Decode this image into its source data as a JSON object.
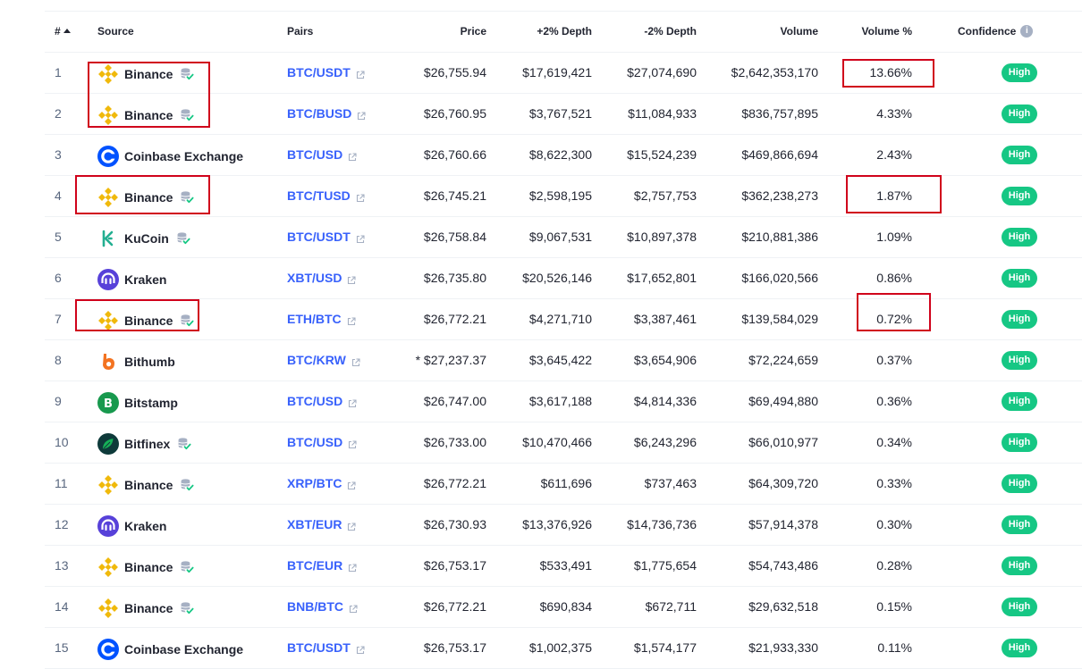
{
  "header": {
    "rank": "#",
    "source": "Source",
    "pairs": "Pairs",
    "price": "Price",
    "plus_depth": "+2% Depth",
    "minus_depth": "-2% Depth",
    "volume": "Volume",
    "volume_pct": "Volume %",
    "confidence": "Confidence",
    "confidence_info_icon": "info-icon",
    "sort_icon": "caret-up-icon"
  },
  "colors": {
    "link": "#3861fb",
    "badge_high": "#16c784",
    "highlight_box": "#d0021b"
  },
  "rows": [
    {
      "rank": "1",
      "source": "Binance",
      "logo": "binance-logo",
      "verified": true,
      "pair": "BTC/USDT",
      "price": "$26,755.94",
      "plus_depth": "$17,619,421",
      "minus_depth": "$27,074,690",
      "volume": "$2,642,353,170",
      "volume_pct": "13.66%",
      "confidence": "High"
    },
    {
      "rank": "2",
      "source": "Binance",
      "logo": "binance-logo",
      "verified": true,
      "pair": "BTC/BUSD",
      "price": "$26,760.95",
      "plus_depth": "$3,767,521",
      "minus_depth": "$11,084,933",
      "volume": "$836,757,895",
      "volume_pct": "4.33%",
      "confidence": "High"
    },
    {
      "rank": "3",
      "source": "Coinbase Exchange",
      "logo": "coinbase-logo",
      "verified": false,
      "pair": "BTC/USD",
      "price": "$26,760.66",
      "plus_depth": "$8,622,300",
      "minus_depth": "$15,524,239",
      "volume": "$469,866,694",
      "volume_pct": "2.43%",
      "confidence": "High"
    },
    {
      "rank": "4",
      "source": "Binance",
      "logo": "binance-logo",
      "verified": true,
      "pair": "BTC/TUSD",
      "price": "$26,745.21",
      "plus_depth": "$2,598,195",
      "minus_depth": "$2,757,753",
      "volume": "$362,238,273",
      "volume_pct": "1.87%",
      "confidence": "High"
    },
    {
      "rank": "5",
      "source": "KuCoin",
      "logo": "kucoin-logo",
      "verified": true,
      "pair": "BTC/USDT",
      "price": "$26,758.84",
      "plus_depth": "$9,067,531",
      "minus_depth": "$10,897,378",
      "volume": "$210,881,386",
      "volume_pct": "1.09%",
      "confidence": "High"
    },
    {
      "rank": "6",
      "source": "Kraken",
      "logo": "kraken-logo",
      "verified": false,
      "pair": "XBT/USD",
      "price": "$26,735.80",
      "plus_depth": "$20,526,146",
      "minus_depth": "$17,652,801",
      "volume": "$166,020,566",
      "volume_pct": "0.86%",
      "confidence": "High"
    },
    {
      "rank": "7",
      "source": "Binance",
      "logo": "binance-logo",
      "verified": true,
      "pair": "ETH/BTC",
      "price": "$26,772.21",
      "plus_depth": "$4,271,710",
      "minus_depth": "$3,387,461",
      "volume": "$139,584,029",
      "volume_pct": "0.72%",
      "confidence": "High"
    },
    {
      "rank": "8",
      "source": "Bithumb",
      "logo": "bithumb-logo",
      "verified": false,
      "pair": "BTC/KRW",
      "price": "* $27,237.37",
      "plus_depth": "$3,645,422",
      "minus_depth": "$3,654,906",
      "volume": "$72,224,659",
      "volume_pct": "0.37%",
      "confidence": "High"
    },
    {
      "rank": "9",
      "source": "Bitstamp",
      "logo": "bitstamp-logo",
      "verified": false,
      "pair": "BTC/USD",
      "price": "$26,747.00",
      "plus_depth": "$3,617,188",
      "minus_depth": "$4,814,336",
      "volume": "$69,494,880",
      "volume_pct": "0.36%",
      "confidence": "High"
    },
    {
      "rank": "10",
      "source": "Bitfinex",
      "logo": "bitfinex-logo",
      "verified": true,
      "pair": "BTC/USD",
      "price": "$26,733.00",
      "plus_depth": "$10,470,466",
      "minus_depth": "$6,243,296",
      "volume": "$66,010,977",
      "volume_pct": "0.34%",
      "confidence": "High"
    },
    {
      "rank": "11",
      "source": "Binance",
      "logo": "binance-logo",
      "verified": true,
      "pair": "XRP/BTC",
      "price": "$26,772.21",
      "plus_depth": "$611,696",
      "minus_depth": "$737,463",
      "volume": "$64,309,720",
      "volume_pct": "0.33%",
      "confidence": "High"
    },
    {
      "rank": "12",
      "source": "Kraken",
      "logo": "kraken-logo",
      "verified": false,
      "pair": "XBT/EUR",
      "price": "$26,730.93",
      "plus_depth": "$13,376,926",
      "minus_depth": "$14,736,736",
      "volume": "$57,914,378",
      "volume_pct": "0.30%",
      "confidence": "High"
    },
    {
      "rank": "13",
      "source": "Binance",
      "logo": "binance-logo",
      "verified": true,
      "pair": "BTC/EUR",
      "price": "$26,753.17",
      "plus_depth": "$533,491",
      "minus_depth": "$1,775,654",
      "volume": "$54,743,486",
      "volume_pct": "0.28%",
      "confidence": "High"
    },
    {
      "rank": "14",
      "source": "Binance",
      "logo": "binance-logo",
      "verified": true,
      "pair": "BNB/BTC",
      "price": "$26,772.21",
      "plus_depth": "$690,834",
      "minus_depth": "$672,711",
      "volume": "$29,632,518",
      "volume_pct": "0.15%",
      "confidence": "High"
    },
    {
      "rank": "15",
      "source": "Coinbase Exchange",
      "logo": "coinbase-logo",
      "verified": false,
      "pair": "BTC/USDT",
      "price": "$26,753.17",
      "plus_depth": "$1,002,375",
      "minus_depth": "$1,574,177",
      "volume": "$21,933,330",
      "volume_pct": "0.11%",
      "confidence": "High"
    }
  ]
}
